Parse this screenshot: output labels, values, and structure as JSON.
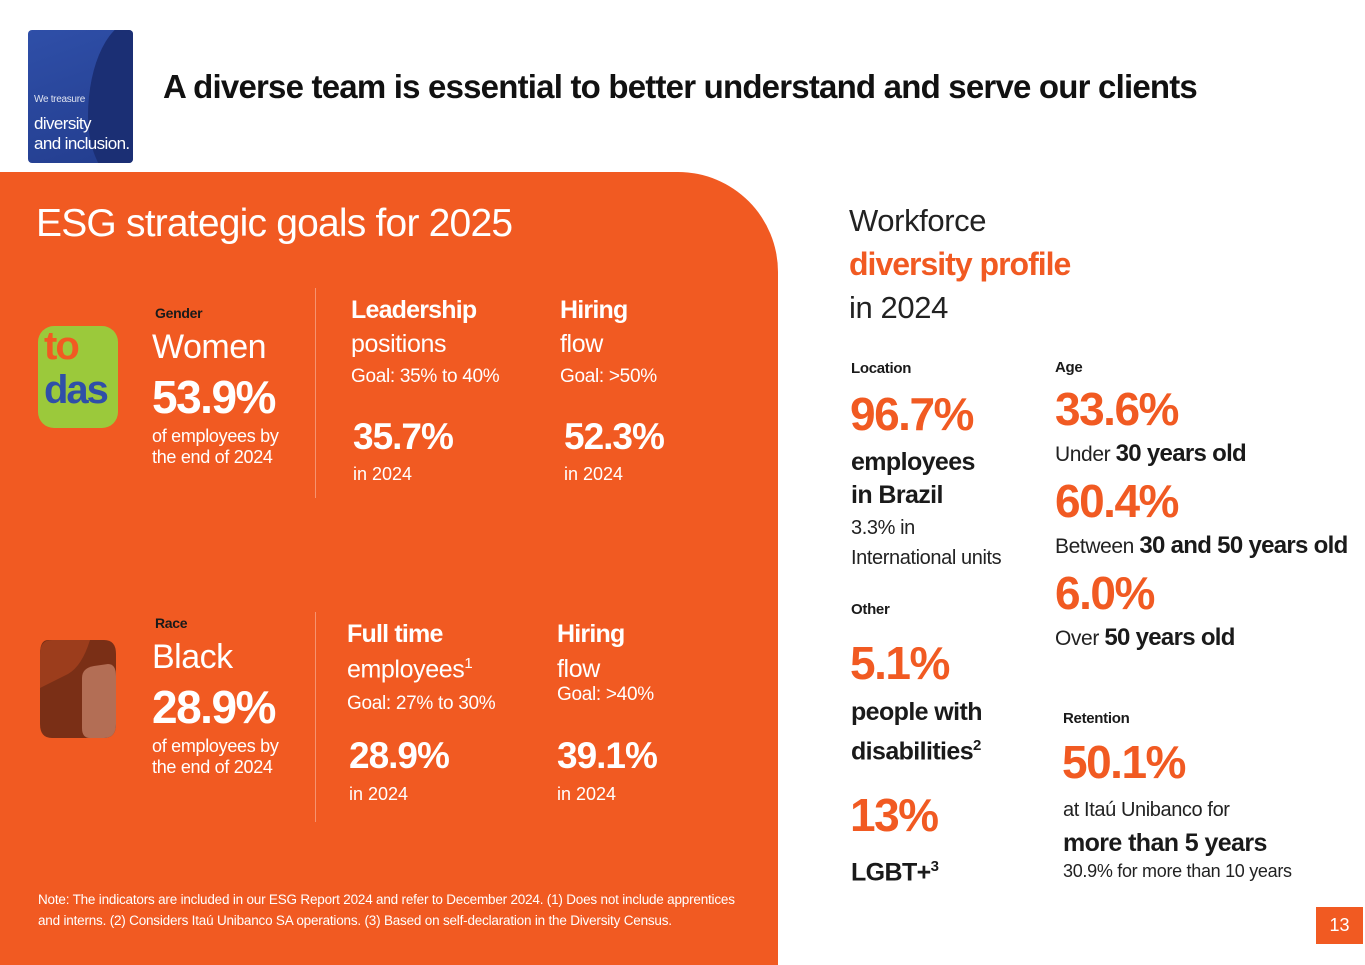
{
  "badge": {
    "small": "We treasure",
    "line1": "diversity",
    "line2": "and inclusion."
  },
  "title": "A diverse team is essential to better understand and serve our clients",
  "esg": {
    "title_light": "ESG strategic goals",
    "title_strong": "for 2025",
    "gender": {
      "logo_top": "to",
      "logo_bottom": "das",
      "label": "Gender",
      "name": "Women",
      "value": "53.9%",
      "sub1": "of employees by",
      "sub2": "the end of 2024",
      "leadership": {
        "heading": "Leadership",
        "sub": "positions",
        "goal": "Goal: 35% to 40%",
        "value": "35.7%",
        "year": "in 2024"
      },
      "hiring": {
        "heading": "Hiring",
        "sub": "flow",
        "goal": "Goal: >50%",
        "value": "52.3%",
        "year": "in 2024"
      }
    },
    "race": {
      "label": "Race",
      "name": "Black",
      "value": "28.9%",
      "sub1": "of employees by",
      "sub2": "the end of 2024",
      "fulltime": {
        "heading": "Full time",
        "sub": "employees",
        "sup": "1",
        "goal": "Goal: 27% to 30%",
        "value": "28.9%",
        "year": "in 2024"
      },
      "hiring": {
        "heading": "Hiring",
        "sub": "flow",
        "goal": "Goal: >40%",
        "value": "39.1%",
        "year": "in 2024"
      }
    },
    "note1": "Note: The indicators are included in our ESG Report 2024 and refer to December 2024. (1) Does not include apprentices",
    "note2": "and interns.  (2) Considers Itaú Unibanco SA operations. (3) Based on self-declaration in the Diversity Census."
  },
  "workforce": {
    "line1": "Workforce",
    "line2": "diversity profile",
    "line3": "in 2024",
    "location": {
      "label": "Location",
      "value": "96.7%",
      "bold1": "employees",
      "bold2": "in Brazil",
      "sub1": "3.3% in",
      "sub2": "International units"
    },
    "other": {
      "label": "Other",
      "value1": "5.1%",
      "bold1": "people with",
      "bold2": "disabilities",
      "sup2": "2",
      "value2": "13%",
      "bold3": "LGBT+",
      "sup3": "3"
    },
    "age": {
      "label": "Age",
      "v1": "33.6%",
      "t1_pre": "Under",
      "t1_bold": "30 years old",
      "v2": "60.4%",
      "t2_pre": "Between",
      "t2_bold": "30 and 50 years old",
      "v3": "6.0%",
      "t3_pre": "Over",
      "t3_bold": "50 years old"
    },
    "retention": {
      "label": "Retention",
      "value": "50.1%",
      "sub1": "at Itaú Unibanco for",
      "bold": "more than 5 years",
      "sub2": "30.9% for more than 10 years"
    }
  },
  "page_number": "13",
  "colors": {
    "orange": "#f15a22",
    "navy": "#2f4fa8",
    "lime": "#9bc93b"
  }
}
